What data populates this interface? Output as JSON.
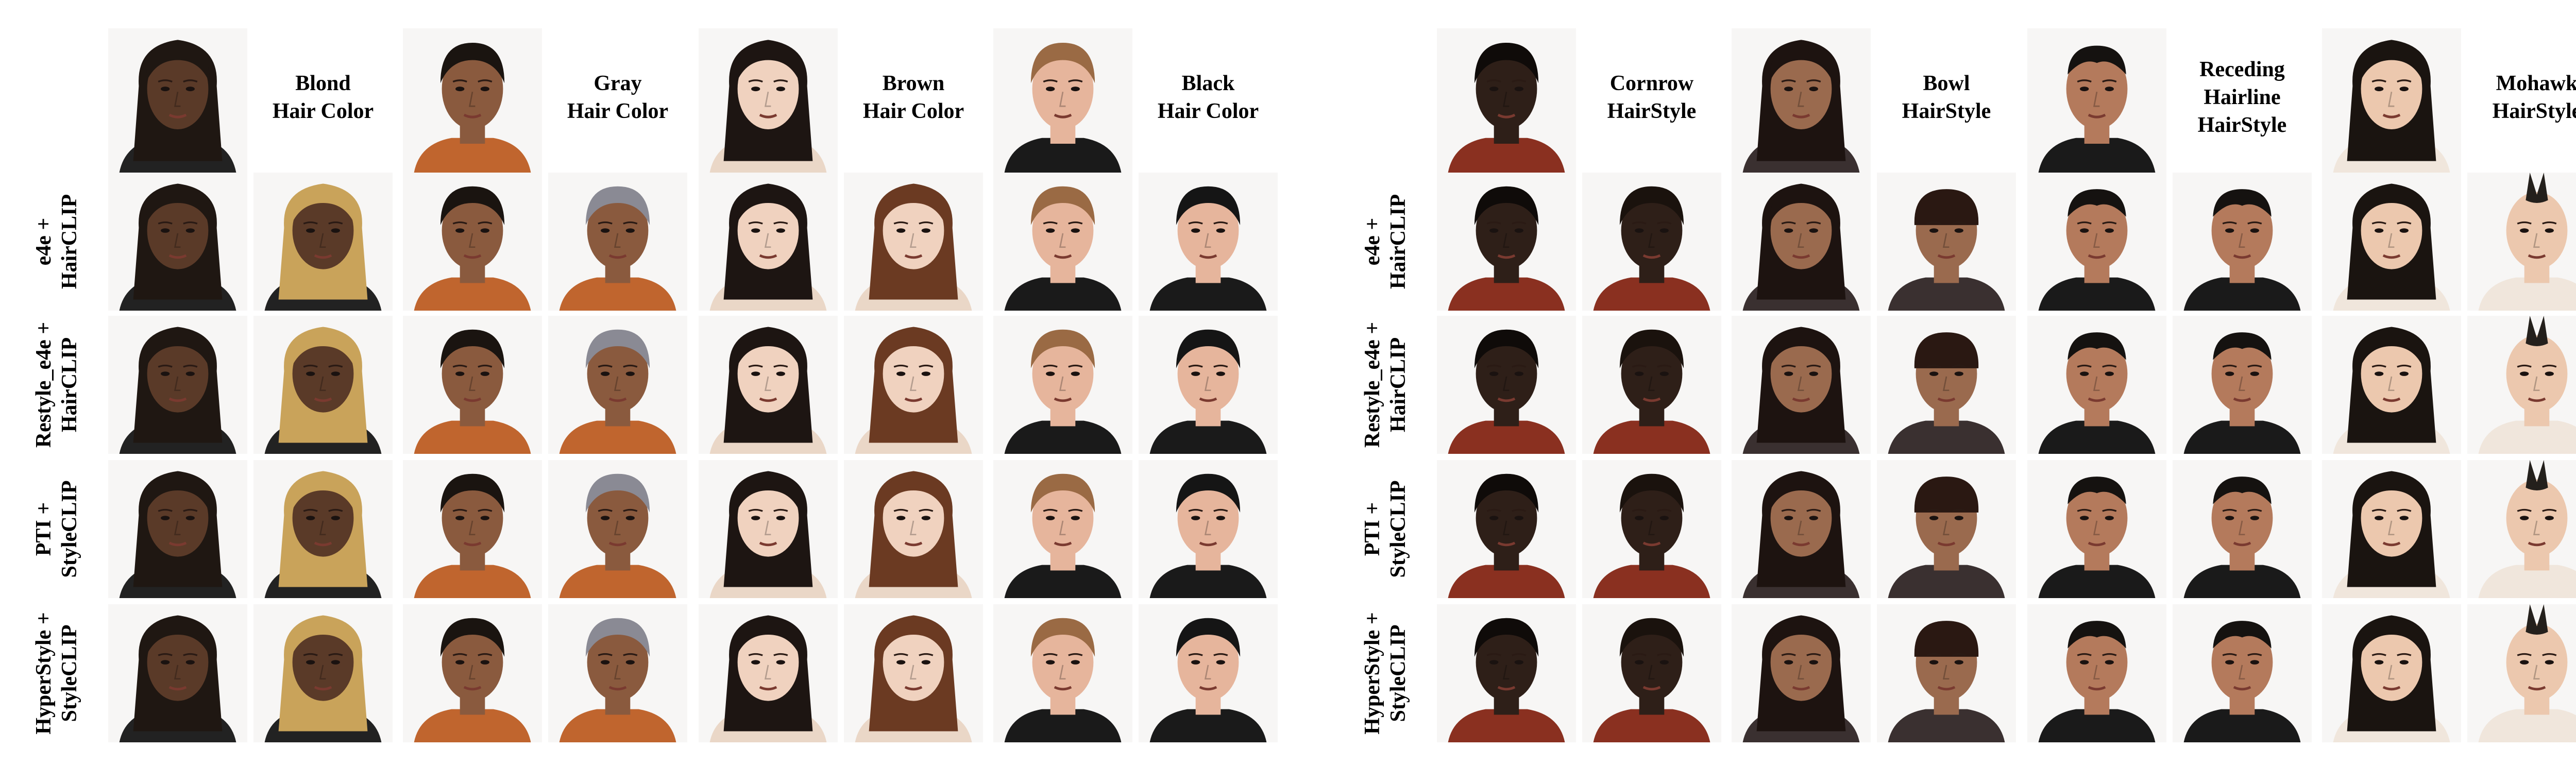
{
  "panels": [
    {
      "id": "hair-color",
      "targets": [
        {
          "label": "Blond\nHair Color",
          "skin": "#5a3a28",
          "hair": "#1f1712",
          "edit_hair": "#c9a35a",
          "shirt": "#222222"
        },
        {
          "label": "Gray\nHair Color",
          "skin": "#8a5a3e",
          "hair": "#1a1410",
          "edit_hair": "#8a8a94",
          "shirt": "#c0652e"
        },
        {
          "label": "Brown\nHair Color",
          "skin": "#f0d2bf",
          "hair": "#1d1512",
          "edit_hair": "#6b3a22",
          "shirt": "#ead7c7"
        },
        {
          "label": "Black\nHair Color",
          "skin": "#e6b59c",
          "hair": "#9a6a44",
          "edit_hair": "#151515",
          "shirt": "#1a1a1a"
        }
      ],
      "methods": [
        "e4e +\nHairCLIP",
        "Restyle_e4e +\nHairCLIP",
        "PTI +\nStyleCLIP",
        "HyperStyle +\nStyleCLIP"
      ]
    },
    {
      "id": "hair-style",
      "targets": [
        {
          "label": "Cornrow\nHairStyle",
          "skin": "#2e1f18",
          "hair": "#0f0b09",
          "edit_hair": "#1a120d",
          "shirt": "#8a3020"
        },
        {
          "label": "Bowl\nHairStyle",
          "skin": "#9a6a4e",
          "hair": "#1d1310",
          "edit_hair": "#2a1812",
          "shirt": "#3a3030"
        },
        {
          "label": "Receding\nHairline\nHairStyle",
          "skin": "#b47a5c",
          "hair": "#151210",
          "edit_hair": "#151210",
          "shirt": "#1a1a1a"
        },
        {
          "label": "Mohawk\nHairStyle",
          "skin": "#ecc8ae",
          "hair": "#1a1410",
          "edit_hair": "#24201c",
          "shirt": "#f0e6dc"
        }
      ],
      "methods": [
        "e4e +\nHairCLIP",
        "Restyle_e4e +\nHairCLIP",
        "PTI +\nStyleCLIP",
        "HyperStyle +\nStyleCLIP"
      ]
    }
  ]
}
